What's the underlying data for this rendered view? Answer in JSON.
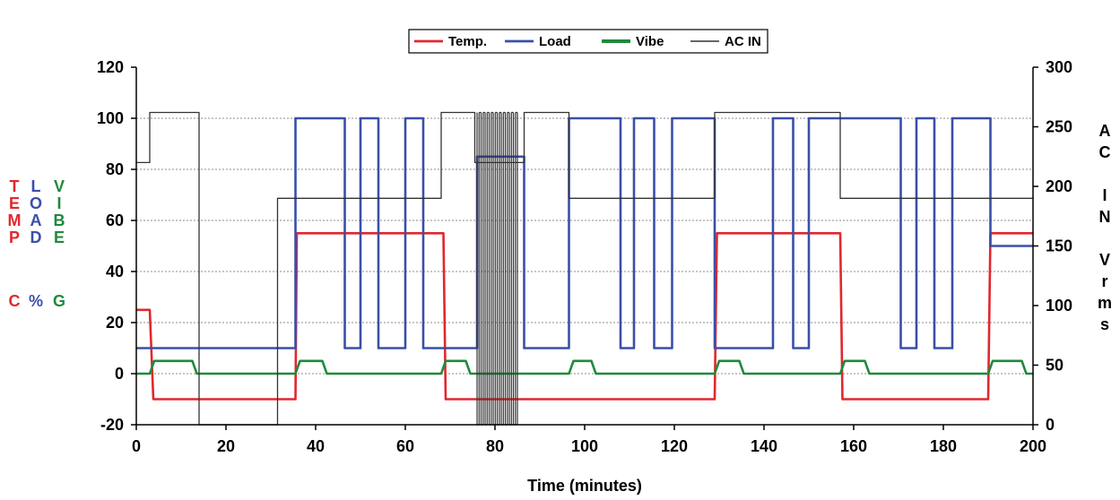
{
  "chart_data": {
    "type": "line",
    "title": "",
    "xlabel": "Time (minutes)",
    "xlim": [
      0,
      200
    ],
    "xticks": [
      "0",
      "20",
      "40",
      "60",
      "80",
      "100",
      "120",
      "140",
      "160",
      "180",
      "200"
    ],
    "ylim_left": [
      -20,
      120
    ],
    "yticks_left": [
      "-20",
      "0",
      "20",
      "40",
      "60",
      "80",
      "100",
      "120"
    ],
    "ylim_right": [
      0,
      300
    ],
    "yticks_right": [
      "0",
      "50",
      "100",
      "150",
      "200",
      "250",
      "300"
    ],
    "grid": true,
    "legend_position": "top-center",
    "left_axis_label_columns": [
      {
        "letters": [
          "T",
          "E",
          "M",
          "P"
        ],
        "unit": "C",
        "color": "#e0282e"
      },
      {
        "letters": [
          "L",
          "O",
          "A",
          "D"
        ],
        "unit": "%",
        "color": "#3a4fa8"
      },
      {
        "letters": [
          "V",
          "I",
          "B",
          "E"
        ],
        "unit": "G",
        "color": "#1f8a3c"
      }
    ],
    "right_axis_label": [
      "A",
      "C",
      "",
      "I",
      "N",
      "",
      "V",
      "r",
      "m",
      "s"
    ],
    "series": [
      {
        "name": "Temp.",
        "axis": "left",
        "color": "#e0282e",
        "x": [
          0,
          3,
          3.8,
          35.5,
          35.8,
          68.5,
          69,
          129,
          129.5,
          157,
          157.5,
          190,
          190.5,
          200
        ],
        "y": [
          25,
          25,
          -10,
          -10,
          55,
          55,
          -10,
          -10,
          55,
          55,
          -10,
          -10,
          55,
          55
        ]
      },
      {
        "name": "Load",
        "axis": "left",
        "color": "#3a4fa8",
        "x": [
          0,
          35.5,
          35.5,
          46.5,
          46.5,
          50,
          50,
          54,
          54,
          60,
          60,
          64,
          64,
          76,
          76,
          86.5,
          86.5,
          96.5,
          96.5,
          108,
          108,
          111,
          111,
          115.5,
          115.5,
          119.5,
          119.5,
          129,
          129,
          142,
          142,
          146.5,
          146.5,
          150,
          150,
          154,
          154,
          170.5,
          170.5,
          174,
          174,
          178,
          178,
          182,
          182,
          190.5,
          190.5,
          200
        ],
        "y": [
          10,
          10,
          100,
          100,
          10,
          10,
          100,
          100,
          10,
          10,
          100,
          100,
          10,
          10,
          85,
          85,
          10,
          10,
          100,
          100,
          10,
          10,
          100,
          100,
          10,
          10,
          100,
          100,
          10,
          10,
          100,
          100,
          10,
          10,
          100,
          100,
          100,
          100,
          10,
          10,
          100,
          100,
          10,
          10,
          100,
          100,
          50,
          50
        ]
      },
      {
        "name": "Vibe",
        "axis": "left",
        "color": "#1f8a3c",
        "x": [
          0,
          3,
          4,
          12.5,
          13.5,
          35.5,
          36.5,
          41.5,
          42.5,
          68,
          69,
          73.5,
          74.5,
          96.5,
          97.5,
          101.5,
          102.5,
          129,
          130,
          134.5,
          135.5,
          157,
          158,
          162.5,
          163.5,
          190,
          191,
          197.5,
          198.5,
          200
        ],
        "y": [
          0,
          0,
          5,
          5,
          0,
          0,
          5,
          5,
          0,
          0,
          5,
          5,
          0,
          0,
          5,
          5,
          0,
          0,
          5,
          5,
          0,
          0,
          5,
          5,
          0,
          0,
          5,
          5,
          0,
          0
        ]
      },
      {
        "name": "AC IN",
        "axis": "right",
        "color": "#333333",
        "x": [
          0,
          3,
          3,
          14,
          14,
          31.5,
          31.5,
          68,
          68,
          75.5,
          75.5,
          86.5,
          86.5,
          96.5,
          96.5,
          129,
          129,
          157,
          157,
          200
        ],
        "y": [
          220,
          220,
          262,
          262,
          0,
          0,
          190,
          190,
          262,
          262,
          220,
          220,
          262,
          262,
          190,
          190,
          262,
          262,
          190,
          190
        ],
        "fast_switching_window": [
          76,
          85
        ],
        "fast_switching_range": [
          0,
          262
        ]
      }
    ]
  }
}
